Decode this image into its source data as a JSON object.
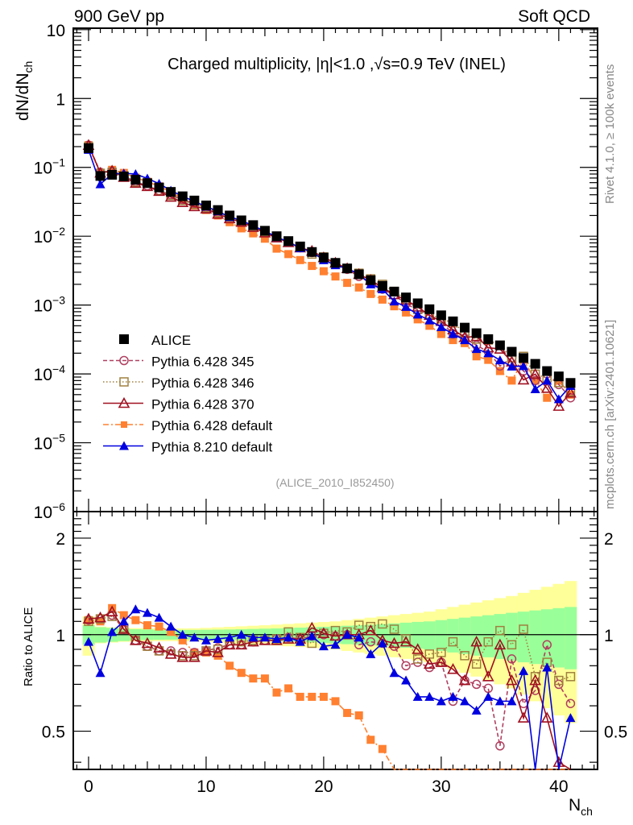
{
  "header": {
    "left_label": "900 GeV pp",
    "right_label": "Soft QCD",
    "side_label_top": "Rivet 4.1.0, ≥ 100k events",
    "side_label_bottom": "mcplots.cern.ch [arXiv:2401.10621]"
  },
  "chart_data": [
    {
      "type": "line",
      "panel": "main",
      "title": "Charged multiplicity, |η|<1.0 ,√s=0.9 TeV (INEL)",
      "xlabel": "N_ch",
      "ylabel": "dN/dN_ch",
      "yscale": "log",
      "xlim": [
        -1.3,
        43.3
      ],
      "ylim": [
        1e-06,
        10.5
      ],
      "yticks": [
        "10",
        "1",
        "10^-1",
        "10^-2",
        "10^-3",
        "10^-4",
        "10^-5",
        "10^-6"
      ],
      "analysis_tag": "(ALICE_2010_I852450)",
      "legend_position": "lower-left",
      "x": [
        0,
        1,
        2,
        3,
        4,
        5,
        6,
        7,
        8,
        9,
        10,
        11,
        12,
        13,
        14,
        15,
        16,
        17,
        18,
        19,
        20,
        21,
        22,
        23,
        24,
        25,
        26,
        27,
        28,
        29,
        30,
        31,
        32,
        33,
        34,
        35,
        36,
        37,
        38,
        39,
        40,
        41
      ],
      "series": [
        {
          "name": "ALICE",
          "color": "#000000",
          "marker": "square-filled",
          "line": "none",
          "values": [
            0.19,
            0.075,
            0.078,
            0.074,
            0.066,
            0.059,
            0.051,
            0.044,
            0.038,
            0.033,
            0.028,
            0.024,
            0.02,
            0.017,
            0.0145,
            0.012,
            0.01,
            0.0085,
            0.0071,
            0.0059,
            0.0049,
            0.0041,
            0.0034,
            0.0028,
            0.0023,
            0.0019,
            0.00157,
            0.00129,
            0.00106,
            0.00087,
            0.00071,
            0.00058,
            0.00047,
            0.00039,
            0.00032,
            0.00026,
            0.00021,
            0.00017,
            0.00014,
            0.00011,
            9.2e-05,
            7.4e-05
          ]
        },
        {
          "name": "Pythia 6.428 345",
          "color": "#b04060",
          "marker": "circle-open",
          "line": "dashed",
          "values": [
            0.21,
            0.085,
            0.088,
            0.075,
            0.062,
            0.054,
            0.046,
            0.04,
            0.034,
            0.03,
            0.026,
            0.022,
            0.019,
            0.016,
            0.014,
            0.0117,
            0.0098,
            0.0082,
            0.0068,
            0.0058,
            0.0048,
            0.004,
            0.0033,
            0.0026,
            0.0021,
            0.0017,
            0.0014,
            0.00104,
            0.00085,
            0.0007,
            0.00057,
            0.00038,
            0.00033,
            0.00026,
            0.00021,
            0.00013,
            0.00017,
            0.00011,
            8e-05,
            0.0001,
            7e-05,
            4.5e-05
          ]
        },
        {
          "name": "Pythia 6.428 346",
          "color": "#a08040",
          "marker": "square-open",
          "line": "dotted",
          "values": [
            0.2,
            0.082,
            0.085,
            0.073,
            0.061,
            0.053,
            0.046,
            0.039,
            0.033,
            0.029,
            0.026,
            0.022,
            0.019,
            0.016,
            0.0138,
            0.0116,
            0.0096,
            0.0083,
            0.0069,
            0.0055,
            0.005,
            0.0041,
            0.0034,
            0.0029,
            0.0024,
            0.002,
            0.00158,
            0.00122,
            0.00086,
            0.00074,
            0.00063,
            0.00055,
            0.0004,
            0.00032,
            0.00031,
            0.00026,
            0.00017,
            0.00018,
            9.9e-05,
            8.7e-05,
            7.5e-05,
            5.5e-05
          ]
        },
        {
          "name": "Pythia 6.428 370",
          "color": "#a01020",
          "marker": "triangle-open",
          "line": "solid",
          "values": [
            0.21,
            0.083,
            0.089,
            0.072,
            0.059,
            0.053,
            0.045,
            0.037,
            0.031,
            0.027,
            0.025,
            0.021,
            0.018,
            0.016,
            0.0135,
            0.0112,
            0.0095,
            0.0081,
            0.0068,
            0.0061,
            0.0049,
            0.0041,
            0.0034,
            0.0028,
            0.0023,
            0.0018,
            0.00142,
            0.00118,
            0.00094,
            0.00071,
            0.00058,
            0.00044,
            0.00034,
            0.00035,
            0.00024,
            0.00023,
            0.00015,
            8.2e-05,
            9.9e-05,
            6.2e-05,
            3.4e-05,
            5.3e-05
          ]
        },
        {
          "name": "Pythia 6.428 default",
          "color": "#ff8030",
          "marker": "square-filled",
          "line": "dashdot",
          "values": [
            0.21,
            0.082,
            0.092,
            0.083,
            0.071,
            0.062,
            0.053,
            0.044,
            0.035,
            0.028,
            0.024,
            0.02,
            0.016,
            0.013,
            0.011,
            0.0092,
            0.0066,
            0.0055,
            0.0045,
            0.0037,
            0.0031,
            0.0026,
            0.0021,
            0.0018,
            0.00145,
            0.0012,
            0.00096,
            0.00078,
            0.00062,
            0.0005,
            0.00038,
            0.00031,
            0.00028,
            0.00018,
            0.00016,
            0.00011,
            8e-05,
            0.00016,
            8e-05,
            4.5e-05,
            8e-05,
            5e-05
          ]
        },
        {
          "name": "Pythia 8.210 default",
          "color": "#0000e0",
          "marker": "triangle-filled",
          "line": "solid",
          "values": [
            0.18,
            0.057,
            0.08,
            0.082,
            0.08,
            0.069,
            0.058,
            0.046,
            0.038,
            0.032,
            0.027,
            0.023,
            0.019,
            0.017,
            0.0141,
            0.0119,
            0.0097,
            0.0083,
            0.0067,
            0.0059,
            0.0045,
            0.0038,
            0.0034,
            0.0028,
            0.002,
            0.0017,
            0.00113,
            0.00094,
            0.00073,
            0.0006,
            0.00048,
            0.00038,
            0.00031,
            0.00023,
            0.0002,
            0.000158,
            0.000128,
            0.00013,
            6e-05,
            8e-05,
            4.3e-05,
            6.7e-05
          ]
        }
      ]
    },
    {
      "type": "line",
      "panel": "ratio",
      "ylabel": "Ratio to ALICE",
      "xlabel": "N_ch",
      "yscale": "log",
      "xlim": [
        -1.3,
        43.3
      ],
      "ylim": [
        0.38,
        2.42
      ],
      "yticks": [
        "0.5",
        "1",
        "2"
      ],
      "xticks": [
        "0",
        "10",
        "20",
        "30",
        "40"
      ],
      "reference_line": 1,
      "bands": {
        "inner_color": "#99ff99",
        "outer_color": "#ffff99",
        "inner_half_width": [
          0.07,
          0.055,
          0.05,
          0.045,
          0.04,
          0.038,
          0.036,
          0.035,
          0.035,
          0.035,
          0.036,
          0.037,
          0.038,
          0.04,
          0.042,
          0.044,
          0.046,
          0.049,
          0.052,
          0.055,
          0.058,
          0.062,
          0.066,
          0.07,
          0.074,
          0.079,
          0.084,
          0.09,
          0.096,
          0.1,
          0.11,
          0.12,
          0.13,
          0.14,
          0.15,
          0.16,
          0.17,
          0.18,
          0.19,
          0.2,
          0.21,
          0.22
        ],
        "outer_half_width": [
          0.14,
          0.06,
          0.055,
          0.05,
          0.048,
          0.046,
          0.045,
          0.045,
          0.046,
          0.047,
          0.05,
          0.054,
          0.058,
          0.062,
          0.066,
          0.07,
          0.075,
          0.08,
          0.085,
          0.09,
          0.095,
          0.1,
          0.11,
          0.12,
          0.13,
          0.14,
          0.15,
          0.16,
          0.17,
          0.18,
          0.2,
          0.22,
          0.24,
          0.26,
          0.28,
          0.3,
          0.32,
          0.35,
          0.38,
          0.41,
          0.44,
          0.47
        ]
      },
      "x": [
        0,
        1,
        2,
        3,
        4,
        5,
        6,
        7,
        8,
        9,
        10,
        11,
        12,
        13,
        14,
        15,
        16,
        17,
        18,
        19,
        20,
        21,
        22,
        23,
        24,
        25,
        26,
        27,
        28,
        29,
        30,
        31,
        32,
        33,
        34,
        35,
        36,
        37,
        38,
        39,
        40,
        41
      ],
      "series": [
        {
          "name": "Pythia 6.428 345",
          "values": [
            1.11,
            1.12,
            1.15,
            1.04,
            0.96,
            0.92,
            0.89,
            0.89,
            0.88,
            0.88,
            0.89,
            0.91,
            0.93,
            0.93,
            0.95,
            0.96,
            0.97,
            0.98,
            0.97,
            0.99,
            1.0,
            0.99,
            1.0,
            0.93,
            0.95,
            0.94,
            0.92,
            0.8,
            0.82,
            0.79,
            0.82,
            0.62,
            0.72,
            0.7,
            0.68,
            0.45,
            0.84,
            0.61,
            0.67,
            0.93,
            0.7,
            0.61
          ]
        },
        {
          "name": "Pythia 6.428 346",
          "values": [
            1.1,
            1.12,
            1.14,
            1.05,
            0.96,
            0.92,
            0.89,
            0.87,
            0.86,
            0.86,
            0.89,
            0.9,
            0.93,
            0.95,
            0.96,
            0.96,
            0.97,
            1.02,
            0.98,
            0.94,
            1.01,
            1.03,
            1.02,
            1.07,
            1.06,
            1.08,
            1.04,
            0.97,
            0.84,
            0.87,
            0.88,
            0.95,
            0.86,
            0.81,
            0.95,
            1.03,
            0.93,
            1.04,
            0.74,
            0.82,
            0.72,
            0.74
          ]
        },
        {
          "name": "Pythia 6.428 370",
          "values": [
            1.12,
            1.13,
            1.18,
            1.04,
            0.96,
            0.94,
            0.91,
            0.87,
            0.85,
            0.85,
            0.89,
            0.88,
            0.93,
            0.93,
            0.95,
            0.96,
            0.96,
            0.97,
            0.97,
            1.05,
            1.01,
            0.99,
            1.0,
            1.0,
            1.03,
            0.96,
            0.94,
            0.95,
            0.9,
            0.81,
            0.82,
            0.78,
            0.72,
            0.95,
            0.74,
            0.93,
            0.72,
            0.55,
            0.72,
            0.55,
            0.4,
            0.3
          ]
        },
        {
          "name": "Pythia 6.428 default",
          "values": [
            1.11,
            1.1,
            1.21,
            1.15,
            1.11,
            1.07,
            1.06,
            1.02,
            0.96,
            0.88,
            0.88,
            0.86,
            0.8,
            0.76,
            0.73,
            0.73,
            0.66,
            0.68,
            0.64,
            0.64,
            0.64,
            0.62,
            0.57,
            0.56,
            0.47,
            0.44,
            0.3,
            0.3,
            0.3,
            0.3,
            0.3,
            0.3,
            0.3,
            0.3,
            0.3,
            0.3,
            0.3,
            0.3,
            0.3,
            0.3,
            0.3,
            0.3
          ]
        },
        {
          "name": "Pythia 8.210 default",
          "values": [
            0.95,
            0.76,
            1.02,
            1.1,
            1.2,
            1.17,
            1.13,
            1.06,
            1.0,
            0.98,
            0.96,
            0.97,
            0.98,
            1.0,
            0.98,
            0.98,
            0.97,
            0.98,
            0.95,
            0.99,
            0.92,
            0.93,
            1.0,
            0.98,
            0.87,
            0.94,
            0.76,
            0.72,
            0.64,
            0.64,
            0.62,
            0.64,
            0.62,
            0.58,
            0.64,
            0.62,
            0.62,
            0.77,
            0.3,
            0.79,
            0.3,
            0.55
          ]
        }
      ]
    }
  ]
}
